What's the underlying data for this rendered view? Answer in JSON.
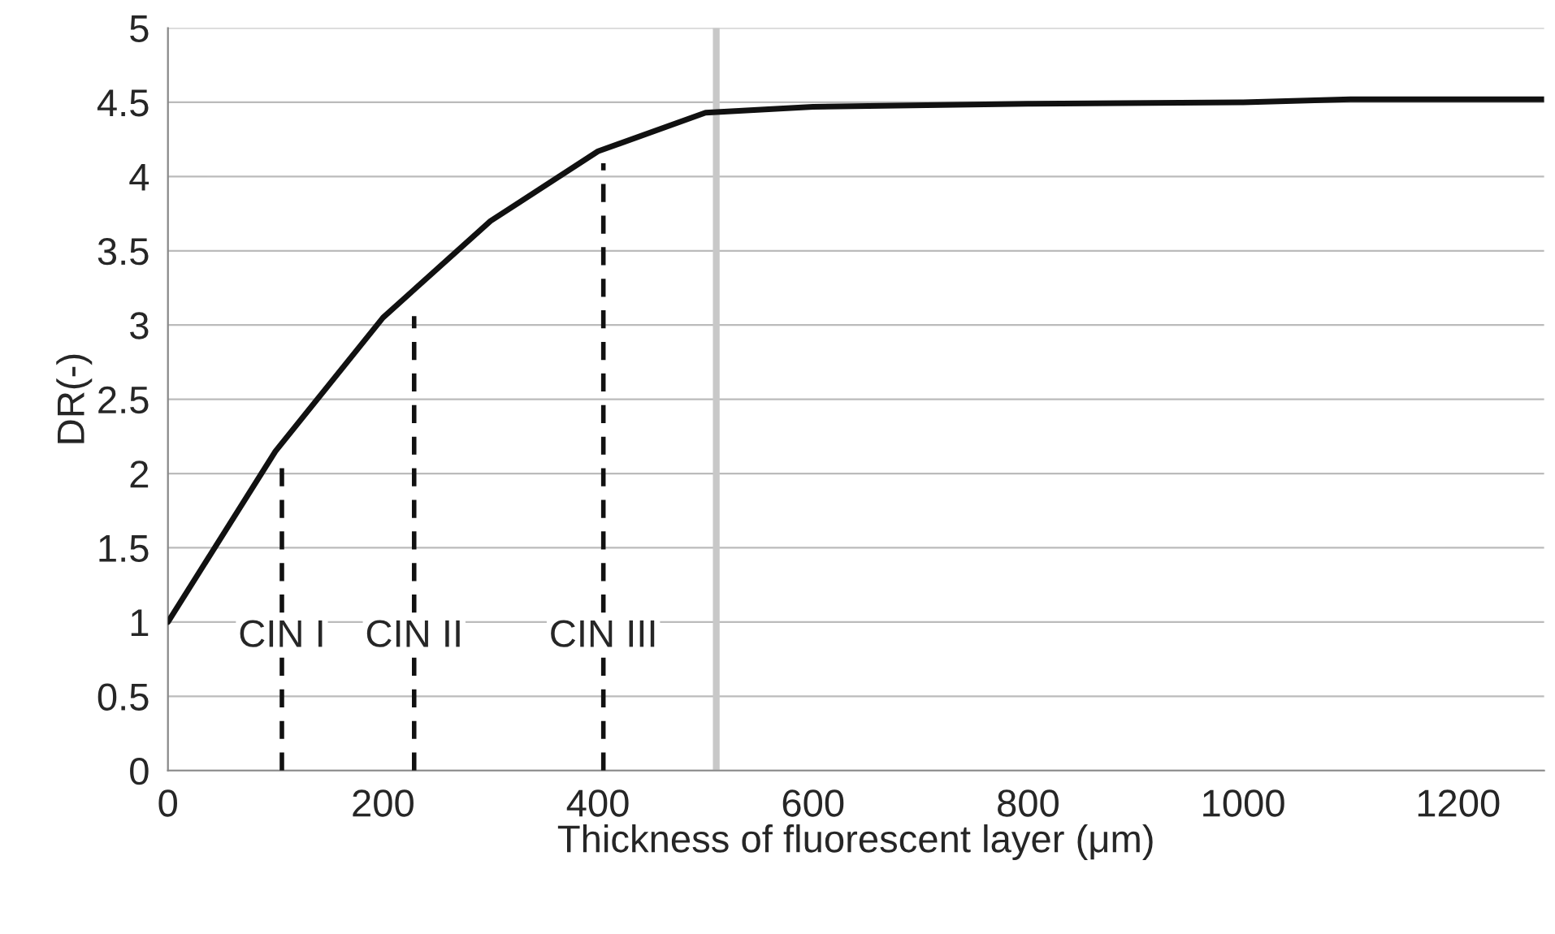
{
  "chart_data": {
    "type": "line",
    "xlabel": "Thickness of fluorescent layer (μm)",
    "ylabel": "DR(-)",
    "xlim": [
      0,
      1280
    ],
    "xticks": [
      0,
      200,
      400,
      600,
      800,
      1000,
      1200
    ],
    "ylim": [
      0,
      5
    ],
    "yticks": [
      0,
      0.5,
      1,
      1.5,
      2,
      2.5,
      3,
      3.5,
      4,
      4.5,
      5
    ],
    "grid": "y",
    "legend": false,
    "series": [
      {
        "color": "#111111",
        "line_style": "solid",
        "x": [
          0,
          100,
          200,
          300,
          400,
          500,
          600,
          800,
          1000,
          1100,
          1200,
          1280
        ],
        "values": [
          1,
          2.15,
          3.05,
          3.7,
          4.17,
          4.43,
          4.47,
          4.49,
          4.5,
          4.52,
          4.52,
          4.52
        ]
      },
      {
        "color": "#111111",
        "line_style": "dashed",
        "x": [
          106,
          106
        ],
        "values": [
          0,
          2.07
        ]
      },
      {
        "color": "#111111",
        "line_style": "dashed",
        "x": [
          229,
          229
        ],
        "values": [
          0,
          3.06
        ]
      },
      {
        "color": "#111111",
        "line_style": "dashed",
        "x": [
          405,
          405
        ],
        "values": [
          0,
          4.09
        ]
      }
    ],
    "ref_lines": [
      {
        "axis": "x",
        "value": 510,
        "color": "#c8c8c8"
      }
    ],
    "annotations": [
      {
        "text": "CIN I",
        "x": 106,
        "y": 0.9
      },
      {
        "text": "CIN II",
        "x": 229,
        "y": 0.9
      },
      {
        "text": "CIN III",
        "x": 405,
        "y": 0.9
      }
    ]
  }
}
